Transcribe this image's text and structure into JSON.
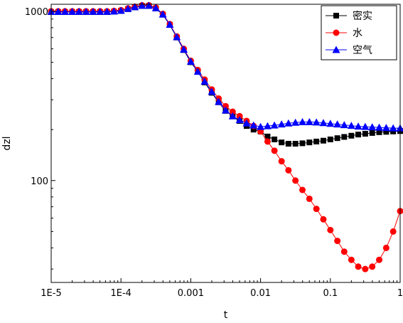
{
  "chart_data": {
    "type": "line",
    "xlabel": "t",
    "ylabel": "dzl",
    "x_scale": "log",
    "y_scale": "log",
    "xlim": [
      1e-05,
      1
    ],
    "ylim": [
      25,
      1100
    ],
    "x_ticks": [
      {
        "value": 1e-05,
        "label": "1E-5"
      },
      {
        "value": 0.0001,
        "label": "1E-4"
      },
      {
        "value": 0.001,
        "label": "0.001"
      },
      {
        "value": 0.01,
        "label": "0.01"
      },
      {
        "value": 0.1,
        "label": "0.1"
      },
      {
        "value": 1,
        "label": "1"
      }
    ],
    "y_ticks": [
      {
        "value": 100,
        "label": "100"
      },
      {
        "value": 1000,
        "label": "1000"
      }
    ],
    "grid": false,
    "legend_position": "top-right",
    "series": [
      {
        "name": "密实",
        "color": "#000000",
        "marker": "square",
        "x": [
          1e-05,
          1.26e-05,
          1.58e-05,
          2e-05,
          2.51e-05,
          3.16e-05,
          3.98e-05,
          5.01e-05,
          6.31e-05,
          7.94e-05,
          0.0001,
          0.000126,
          0.000158,
          0.0002,
          0.000251,
          0.000316,
          0.000398,
          0.000501,
          0.000631,
          0.000794,
          0.001,
          0.00126,
          0.00158,
          0.002,
          0.00251,
          0.00316,
          0.00398,
          0.00501,
          0.00631,
          0.00794,
          0.01,
          0.0126,
          0.0158,
          0.02,
          0.0251,
          0.0316,
          0.0398,
          0.0501,
          0.0631,
          0.0794,
          0.1,
          0.126,
          0.158,
          0.2,
          0.251,
          0.316,
          0.398,
          0.501,
          0.631,
          0.794,
          1.0
        ],
        "y": [
          990,
          990,
          990,
          990,
          990,
          990,
          990,
          990,
          990,
          995,
          1005,
          1030,
          1055,
          1075,
          1075,
          1040,
          955,
          830,
          700,
          590,
          500,
          440,
          380,
          330,
          290,
          258,
          240,
          225,
          210,
          200,
          195,
          182,
          175,
          168,
          165,
          165,
          166,
          168,
          170,
          172,
          175,
          178,
          181,
          184,
          187,
          189,
          191,
          193,
          194,
          195,
          196
        ]
      },
      {
        "name": "水",
        "color": "#ff0000",
        "marker": "circle",
        "x": [
          1e-05,
          1.26e-05,
          1.58e-05,
          2e-05,
          2.51e-05,
          3.16e-05,
          3.98e-05,
          5.01e-05,
          6.31e-05,
          7.94e-05,
          0.0001,
          0.000126,
          0.000158,
          0.0002,
          0.000251,
          0.000316,
          0.000398,
          0.000501,
          0.000631,
          0.000794,
          0.001,
          0.00126,
          0.00158,
          0.002,
          0.00251,
          0.00316,
          0.00398,
          0.00501,
          0.00631,
          0.00794,
          0.01,
          0.0126,
          0.0158,
          0.02,
          0.0251,
          0.0316,
          0.0398,
          0.0501,
          0.0631,
          0.0794,
          0.1,
          0.126,
          0.158,
          0.2,
          0.251,
          0.316,
          0.398,
          0.501,
          0.631,
          0.794,
          1.0
        ],
        "y": [
          1000,
          1000,
          1000,
          1000,
          1000,
          1000,
          1000,
          1000,
          1000,
          1005,
          1015,
          1040,
          1065,
          1085,
          1085,
          1050,
          965,
          840,
          710,
          600,
          510,
          450,
          395,
          345,
          305,
          275,
          255,
          240,
          225,
          210,
          195,
          170,
          150,
          130,
          115,
          100,
          88,
          78,
          68,
          59,
          51,
          44,
          38,
          34,
          31,
          30,
          31,
          34,
          40,
          50,
          66
        ]
      },
      {
        "name": "空气",
        "color": "#0000ff",
        "marker": "triangle",
        "x": [
          1e-05,
          1.26e-05,
          1.58e-05,
          2e-05,
          2.51e-05,
          3.16e-05,
          3.98e-05,
          5.01e-05,
          6.31e-05,
          7.94e-05,
          0.0001,
          0.000126,
          0.000158,
          0.0002,
          0.000251,
          0.000316,
          0.000398,
          0.000501,
          0.000631,
          0.000794,
          0.001,
          0.00126,
          0.00158,
          0.002,
          0.00251,
          0.00316,
          0.00398,
          0.00501,
          0.00631,
          0.00794,
          0.01,
          0.0126,
          0.0158,
          0.02,
          0.0251,
          0.0316,
          0.0398,
          0.0501,
          0.0631,
          0.0794,
          0.1,
          0.126,
          0.158,
          0.2,
          0.251,
          0.316,
          0.398,
          0.501,
          0.631,
          0.794,
          1.0
        ],
        "y": [
          995,
          995,
          995,
          995,
          995,
          995,
          995,
          995,
          995,
          1000,
          1010,
          1035,
          1060,
          1080,
          1080,
          1045,
          960,
          835,
          705,
          595,
          505,
          440,
          385,
          335,
          292,
          260,
          240,
          228,
          218,
          212,
          208,
          210,
          212,
          215,
          218,
          220,
          222,
          222,
          221,
          219,
          217,
          215,
          213,
          211,
          209,
          208,
          207,
          206,
          205,
          204,
          204
        ]
      }
    ]
  }
}
